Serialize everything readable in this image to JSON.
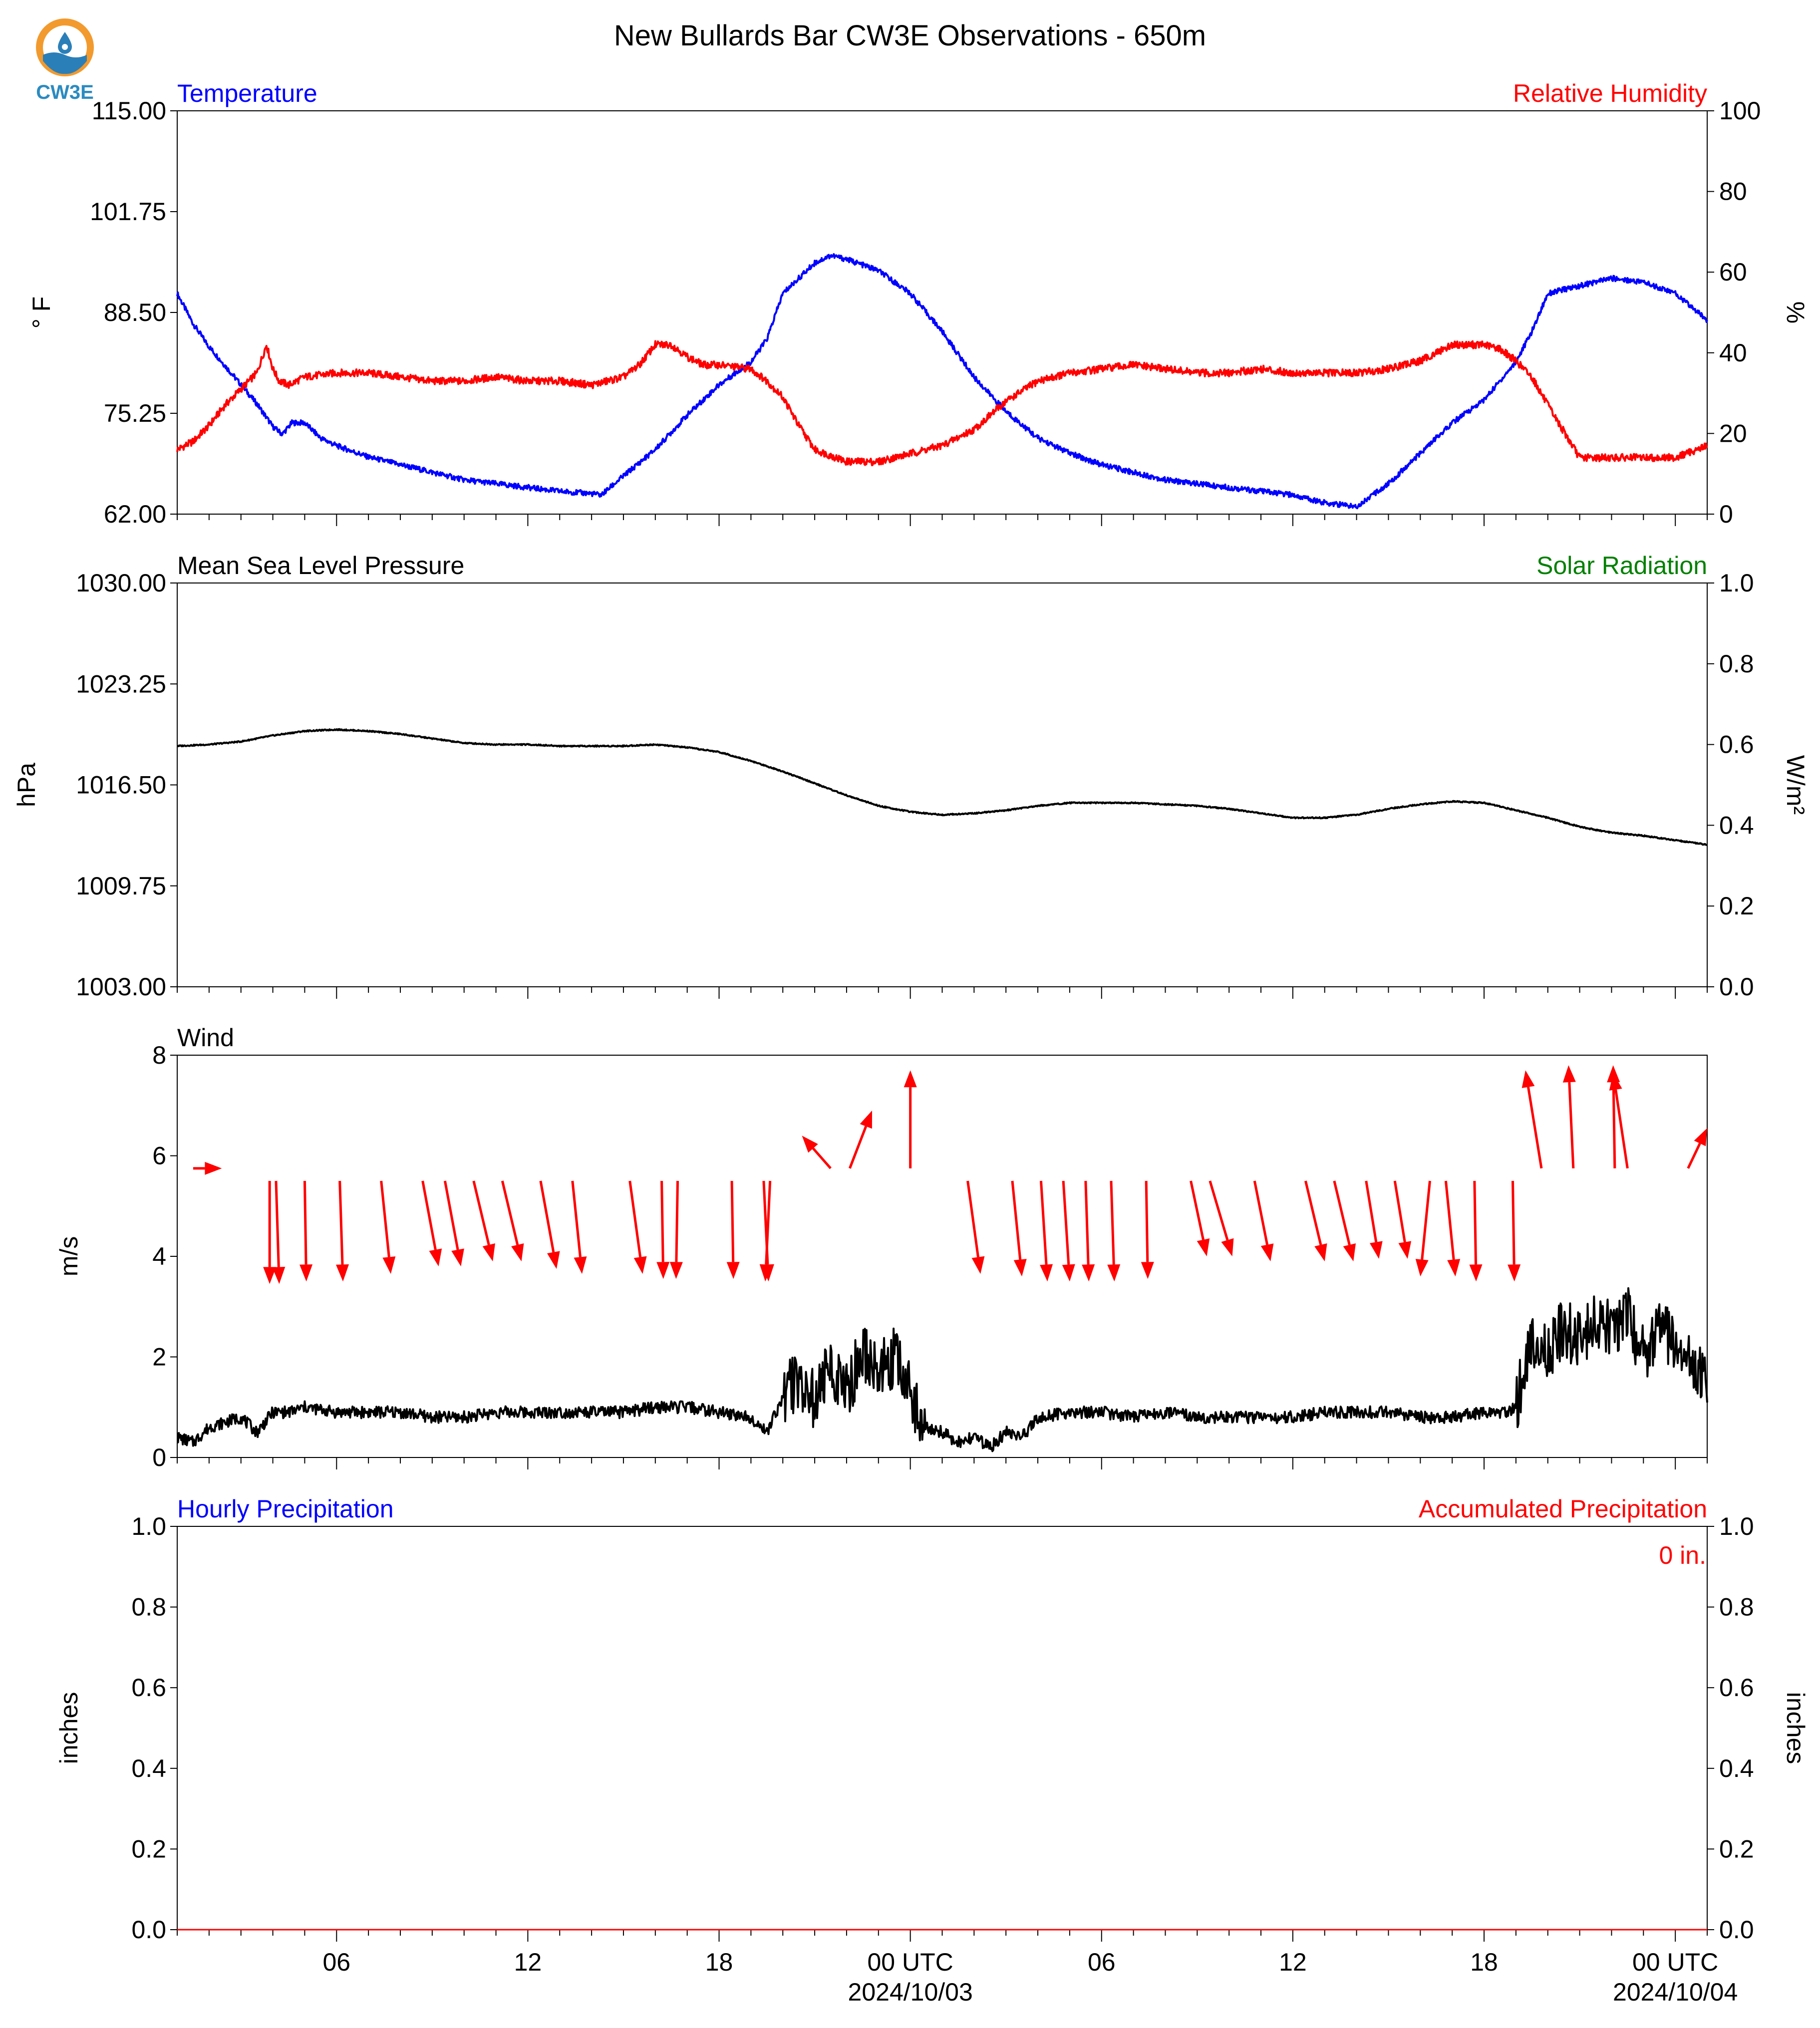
{
  "title": "New Bullards Bar CW3E Observations - 650m",
  "logo": {
    "text": "CW3E",
    "icon": "cw3e-water-drop-logo",
    "colors": {
      "ring": "#F29A2E",
      "wave": "#2B7FB8",
      "text": "#2B8BC0"
    }
  },
  "colors": {
    "temperature": "#0000FF",
    "humidity": "#FF0000",
    "pressure": "#000000",
    "solar": "#008000",
    "wind": "#000000",
    "arrows": "#FF0000",
    "precip_hourly": "#0000FF",
    "precip_accum": "#FF0000"
  },
  "x_axis": {
    "tick_labels": [
      {
        "t": 6,
        "label": "06"
      },
      {
        "t": 12,
        "label": "12"
      },
      {
        "t": 18,
        "label": "18"
      },
      {
        "t": 24,
        "label": "00 UTC",
        "sub": "2024/10/03"
      },
      {
        "t": 30,
        "label": "06"
      },
      {
        "t": 36,
        "label": "12"
      },
      {
        "t": 42,
        "label": "18"
      },
      {
        "t": 48,
        "label": "00 UTC",
        "sub": "2024/10/04"
      }
    ],
    "range_hours": [
      1,
      49
    ],
    "minor_every_hours": 1
  },
  "chart_data": [
    {
      "type": "line",
      "panel": "temperature-humidity",
      "left_title": "Temperature",
      "right_title": "Relative Humidity",
      "ylabel_left": "° F",
      "ylabel_right": "%",
      "ylim_left": [
        62,
        115
      ],
      "ylim_right": [
        0,
        100
      ],
      "yticks_left": [
        "62.00",
        "75.25",
        "88.50",
        "101.75",
        "115.00"
      ],
      "yticks_right": [
        "0",
        "20",
        "40",
        "60",
        "80",
        "100"
      ],
      "series": [
        {
          "name": "Temperature",
          "axis": "left",
          "x": [
            1,
            1.5,
            2,
            2.5,
            3,
            3.5,
            4,
            4.3,
            4.6,
            5,
            5.5,
            6,
            7,
            8,
            9,
            10,
            11,
            12,
            13,
            14,
            14.3,
            15,
            16,
            17,
            18,
            19,
            19.5,
            20,
            21,
            21.5,
            22,
            23,
            24,
            25,
            26,
            27,
            28,
            29,
            30,
            31,
            32,
            33,
            34,
            35,
            36,
            37,
            38,
            39,
            40,
            41,
            42,
            43,
            43.5,
            44,
            45,
            46,
            47,
            48,
            49
          ],
          "values": [
            91,
            87,
            84,
            81.5,
            79,
            76.5,
            73.5,
            72.5,
            74,
            74,
            72,
            71,
            69.5,
            68.5,
            67.5,
            66.5,
            66,
            65.5,
            65,
            64.7,
            64.5,
            67,
            70.5,
            75,
            79,
            82,
            85,
            91,
            95,
            96,
            95.5,
            94,
            91,
            86,
            80,
            75.5,
            72,
            70,
            68.5,
            67.5,
            66.5,
            66,
            65.5,
            65,
            64.5,
            63.5,
            63,
            66,
            70,
            74,
            77,
            82,
            86,
            91,
            92,
            93,
            92.5,
            91,
            87.5
          ]
        },
        {
          "name": "Relative Humidity",
          "axis": "right",
          "x": [
            1,
            1.5,
            2,
            2.5,
            3,
            3.5,
            3.8,
            4,
            4.2,
            4.5,
            5,
            6,
            7,
            8,
            9,
            10,
            11,
            12,
            13,
            14,
            15,
            15.5,
            16,
            16.5,
            17,
            17.5,
            18,
            19,
            19.5,
            20,
            20.5,
            21,
            22,
            23,
            24,
            25,
            26,
            27,
            28,
            29,
            30,
            31,
            32,
            33,
            34,
            35,
            36,
            37,
            38,
            39,
            40,
            41,
            42,
            42.5,
            43,
            43.5,
            44,
            45,
            46,
            47,
            48,
            49
          ],
          "values": [
            16,
            18,
            22,
            27,
            31,
            35,
            42,
            36,
            33,
            32,
            34,
            35,
            35,
            34,
            33,
            33,
            34,
            33,
            33,
            32,
            34,
            37,
            42,
            42,
            39,
            37,
            37,
            36,
            33,
            29,
            22,
            16,
            13,
            13,
            15,
            17,
            21,
            28,
            33,
            35,
            36,
            37,
            36,
            35,
            35,
            36,
            35,
            35,
            35,
            36,
            38,
            42,
            42,
            41,
            38,
            34,
            27,
            14,
            14,
            14,
            14,
            17
          ]
        }
      ]
    },
    {
      "type": "line",
      "panel": "pressure-solar",
      "left_title": "Mean Sea Level Pressure",
      "right_title": "Solar Radiation",
      "ylabel_left": "hPa",
      "ylabel_right": "W/m²",
      "ylim_left": [
        1003,
        1030
      ],
      "ylim_right": [
        0,
        1
      ],
      "yticks_left": [
        "1003.00",
        "1009.75",
        "1016.50",
        "1023.25",
        "1030.00"
      ],
      "yticks_right": [
        "0.0",
        "0.2",
        "0.4",
        "0.6",
        "0.8",
        "1.0"
      ],
      "series": [
        {
          "name": "Mean Sea Level Pressure",
          "axis": "left",
          "x": [
            1,
            2,
            3,
            4,
            5,
            6,
            7,
            8,
            9,
            10,
            11,
            12,
            13,
            14,
            15,
            16,
            17,
            18,
            19,
            20,
            21,
            22,
            23,
            24,
            25,
            26,
            27,
            28,
            29,
            30,
            31,
            32,
            33,
            34,
            35,
            36,
            37,
            38,
            39,
            40,
            41,
            42,
            43,
            44,
            45,
            46,
            47,
            48,
            49
          ],
          "values": [
            1019.1,
            1019.2,
            1019.4,
            1019.8,
            1020.1,
            1020.2,
            1020.1,
            1019.9,
            1019.6,
            1019.3,
            1019.2,
            1019.2,
            1019.1,
            1019.1,
            1019.1,
            1019.2,
            1019,
            1018.7,
            1018.1,
            1017.4,
            1016.6,
            1015.8,
            1015.1,
            1014.7,
            1014.5,
            1014.6,
            1014.8,
            1015.1,
            1015.3,
            1015.3,
            1015.3,
            1015.2,
            1015.1,
            1014.9,
            1014.6,
            1014.3,
            1014.3,
            1014.5,
            1014.9,
            1015.2,
            1015.4,
            1015.3,
            1014.8,
            1014.3,
            1013.7,
            1013.3,
            1013.1,
            1012.8,
            1012.5
          ]
        }
      ]
    },
    {
      "type": "line",
      "panel": "wind",
      "left_title": "Wind",
      "ylabel_left": "m/s",
      "ylim_left": [
        0,
        8
      ],
      "yticks_left": [
        "0",
        "2",
        "4",
        "6",
        "8"
      ],
      "series": [
        {
          "name": "Wind Speed",
          "axis": "left",
          "x": [
            1,
            1.5,
            2,
            2.5,
            3,
            3.5,
            4,
            4.5,
            5,
            6,
            7,
            8,
            9,
            10,
            11,
            12,
            13,
            14,
            15,
            16,
            17,
            18,
            19,
            19.5,
            20,
            20.5,
            21,
            21.5,
            22,
            22.5,
            23,
            23.5,
            24,
            24.5,
            25,
            25.5,
            26,
            26.5,
            27,
            27.5,
            28,
            29,
            30,
            31,
            32,
            33,
            34,
            35,
            36,
            37,
            38,
            39,
            40,
            41,
            42,
            42.8,
            43,
            43.5,
            44,
            44.5,
            45,
            45.5,
            46,
            46.5,
            47,
            47.5,
            48,
            48.5,
            49
          ],
          "values": [
            0.4,
            0.3,
            0.6,
            0.7,
            0.8,
            0.5,
            0.9,
            0.9,
            1,
            0.9,
            0.9,
            0.9,
            0.8,
            0.8,
            0.9,
            0.9,
            0.9,
            0.9,
            0.9,
            1,
            1,
            0.9,
            0.8,
            0.5,
            1.2,
            1.6,
            1.1,
            1.8,
            1.3,
            2.1,
            1.7,
            2,
            1.3,
            0.6,
            0.5,
            0.3,
            0.4,
            0.2,
            0.5,
            0.4,
            0.8,
            0.9,
            0.9,
            0.8,
            0.9,
            0.8,
            0.8,
            0.8,
            0.8,
            0.9,
            0.9,
            0.9,
            0.8,
            0.8,
            0.9,
            0.9,
            1,
            2.4,
            2.1,
            2.6,
            2.3,
            2.8,
            2.5,
            2.9,
            2,
            2.6,
            2.2,
            1.8,
            1.5
          ]
        }
      ],
      "wind_barbs": {
        "t": [
          1.5,
          3.9,
          4.1,
          5,
          6.1,
          7.4,
          8.7,
          9.4,
          10.3,
          11.2,
          12.4,
          13.4,
          15.2,
          16.2,
          16.7,
          18.4,
          19.4,
          19.6,
          21.5,
          22.1,
          24,
          25.8,
          27.2,
          28.1,
          28.8,
          29.5,
          30.3,
          31.4,
          32.8,
          33.4,
          34.8,
          36.4,
          37.3,
          38.3,
          39.2,
          40.3,
          40.8,
          41.7,
          42.9,
          43.8,
          44.8,
          46.1,
          46.5,
          48.4
        ],
        "y": [
          5.75,
          5.5,
          5.5,
          5.5,
          5.5,
          5.5,
          5.5,
          5.5,
          5.5,
          5.5,
          5.5,
          5.5,
          5.5,
          5.5,
          5.5,
          5.5,
          5.5,
          5.5,
          5.75,
          5.75,
          5.75,
          5.5,
          5.5,
          5.5,
          5.5,
          5.5,
          5.5,
          5.5,
          5.5,
          5.5,
          5.5,
          5.5,
          5.5,
          5.5,
          5.5,
          5.5,
          5.5,
          5.5,
          5.5,
          5.75,
          5.75,
          5.75,
          5.75,
          5.75
        ],
        "dx": [
          0.9,
          0,
          0.1,
          0.05,
          0.1,
          0.3,
          0.5,
          0.5,
          0.6,
          0.6,
          0.5,
          0.3,
          0.4,
          0.05,
          -0.05,
          0.05,
          0.15,
          -0.15,
          -0.9,
          0.7,
          0,
          0.4,
          0.3,
          0.2,
          0.2,
          0.1,
          0.1,
          0.05,
          0.5,
          0.7,
          0.5,
          0.6,
          0.6,
          0.4,
          0.4,
          -0.3,
          0.3,
          0.05,
          0.05,
          -0.5,
          -0.15,
          -0.05,
          -0.45,
          0.6
        ],
        "dy": [
          0,
          -2.05,
          -2.05,
          -2,
          -2,
          -1.85,
          -1.7,
          -1.7,
          -1.6,
          -1.6,
          -1.75,
          -1.85,
          -1.85,
          -1.95,
          -1.95,
          -1.95,
          -2,
          -2,
          0.65,
          1.15,
          1.95,
          -1.85,
          -1.9,
          -2,
          -2,
          -2,
          -2,
          -1.95,
          -1.5,
          -1.5,
          -1.6,
          -1.6,
          -1.6,
          -1.55,
          -1.55,
          -1.9,
          -1.9,
          -2,
          -2,
          1.95,
          2.05,
          2.05,
          1.9,
          0.8
        ]
      }
    },
    {
      "type": "line",
      "panel": "precipitation",
      "left_title": "Hourly Precipitation",
      "right_title": "Accumulated Precipitation",
      "ylabel_left": "inches",
      "ylabel_right": "inches",
      "ylim_left": [
        0,
        1
      ],
      "ylim_right": [
        0,
        1
      ],
      "yticks_left": [
        "0.0",
        "0.2",
        "0.4",
        "0.6",
        "0.8",
        "1.0"
      ],
      "yticks_right": [
        "0.0",
        "0.2",
        "0.4",
        "0.6",
        "0.8",
        "1.0"
      ],
      "total_label": "0 in.",
      "series": [
        {
          "name": "Accumulated Precipitation",
          "axis": "right",
          "x": [
            1,
            49
          ],
          "values": [
            0,
            0
          ]
        }
      ]
    }
  ]
}
